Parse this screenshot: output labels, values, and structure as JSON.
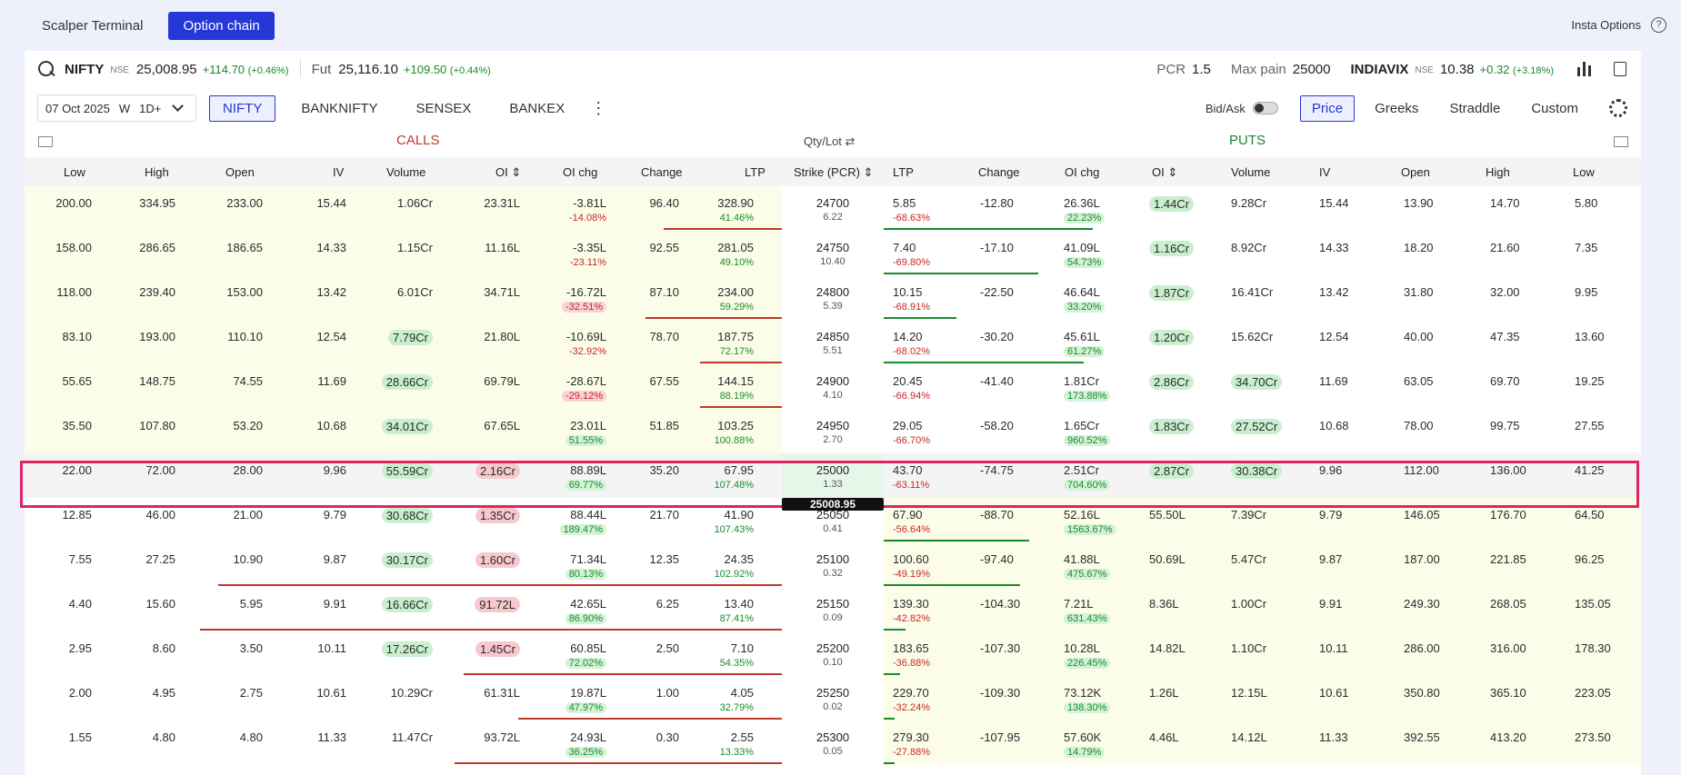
{
  "nav": {
    "tab1": "Scalper Terminal",
    "tab2": "Option chain",
    "insta": "Insta Options",
    "help": "?"
  },
  "index": {
    "name": "NIFTY",
    "exch": "NSE",
    "price": "25,008.95",
    "chg": "+114.70",
    "chg_pct": "(+0.46%)",
    "fut_label": "Fut",
    "fut_price": "25,116.10",
    "fut_chg": "+109.50",
    "fut_pct": "(+0.44%)"
  },
  "stats": {
    "pcr_label": "PCR",
    "pcr": "1.5",
    "maxpain_label": "Max pain",
    "maxpain": "25000",
    "vix_name": "INDIAVIX",
    "vix_exch": "NSE",
    "vix": "10.38",
    "vix_chg": "+0.32",
    "vix_pct": "(+3.18%)"
  },
  "controls": {
    "date": "07 Oct 2025",
    "w": "W",
    "span": "1D+",
    "tabs": [
      "NIFTY",
      "BANKNIFTY",
      "SENSEX",
      "BANKEX"
    ],
    "bidask": "Bid/Ask",
    "views": [
      "Price",
      "Greeks",
      "Straddle",
      "Custom"
    ]
  },
  "labels": {
    "calls": "CALLS",
    "qty": "Qty/Lot ⇄",
    "puts": "PUTS"
  },
  "headers": {
    "low": "Low",
    "high": "High",
    "open": "Open",
    "iv": "IV",
    "volume": "Volume",
    "oi": "OI ⇕",
    "oichg": "OI chg",
    "change": "Change",
    "ltp": "LTP",
    "strike": "Strike (PCR) ⇕",
    "p_ltp": "LTP",
    "p_change": "Change",
    "p_oichg": "OI chg",
    "p_oi": "OI ⇕",
    "p_volume": "Volume",
    "p_iv": "IV",
    "p_open": "Open",
    "p_high": "High",
    "p_low": "Low"
  },
  "spot_marker": "25008.95",
  "rows": [
    {
      "c": [
        "200.00",
        "334.95",
        "233.00",
        "15.44",
        "1.06Cr",
        "23.31L",
        "-3.81L",
        "-14.08%",
        "96.40",
        "328.90",
        "41.46%"
      ],
      "s": "24700",
      "pcr": "6.22",
      "p": [
        "5.85",
        "-68.63%",
        "-12.80",
        "26.36L",
        "22.23%",
        "1.44Cr",
        "9.28Cr",
        "15.44",
        "13.90",
        "14.70",
        "5.80"
      ]
    },
    {
      "c": [
        "158.00",
        "286.65",
        "186.65",
        "14.33",
        "1.15Cr",
        "11.16L",
        "-3.35L",
        "-23.11%",
        "92.55",
        "281.05",
        "49.10%"
      ],
      "s": "24750",
      "pcr": "10.40",
      "p": [
        "7.40",
        "-69.80%",
        "-17.10",
        "41.09L",
        "54.73%",
        "1.16Cr",
        "8.92Cr",
        "14.33",
        "18.20",
        "21.60",
        "7.35"
      ]
    },
    {
      "c": [
        "118.00",
        "239.40",
        "153.00",
        "13.42",
        "6.01Cr",
        "34.71L",
        "-16.72L",
        "-32.51%",
        "87.10",
        "234.00",
        "59.29%"
      ],
      "s": "24800",
      "pcr": "5.39",
      "p": [
        "10.15",
        "-68.91%",
        "-22.50",
        "46.64L",
        "33.20%",
        "1.87Cr",
        "16.41Cr",
        "13.42",
        "31.80",
        "32.00",
        "9.95"
      ]
    },
    {
      "c": [
        "83.10",
        "193.00",
        "110.10",
        "12.54",
        "7.79Cr",
        "21.80L",
        "-10.69L",
        "-32.92%",
        "78.70",
        "187.75",
        "72.17%"
      ],
      "s": "24850",
      "pcr": "5.51",
      "p": [
        "14.20",
        "-68.02%",
        "-30.20",
        "45.61L",
        "61.27%",
        "1.20Cr",
        "15.62Cr",
        "12.54",
        "40.00",
        "47.35",
        "13.60"
      ]
    },
    {
      "c": [
        "55.65",
        "148.75",
        "74.55",
        "11.69",
        "28.66Cr",
        "69.79L",
        "-28.67L",
        "-29.12%",
        "67.55",
        "144.15",
        "88.19%"
      ],
      "s": "24900",
      "pcr": "4.10",
      "p": [
        "20.45",
        "-66.94%",
        "-41.40",
        "1.81Cr",
        "173.88%",
        "2.86Cr",
        "34.70Cr",
        "11.69",
        "63.05",
        "69.70",
        "19.25"
      ]
    },
    {
      "c": [
        "35.50",
        "107.80",
        "53.20",
        "10.68",
        "34.01Cr",
        "67.65L",
        "23.01L",
        "51.55%",
        "51.85",
        "103.25",
        "100.88%"
      ],
      "s": "24950",
      "pcr": "2.70",
      "p": [
        "29.05",
        "-66.70%",
        "-58.20",
        "1.65Cr",
        "960.52%",
        "1.83Cr",
        "27.52Cr",
        "10.68",
        "78.00",
        "99.75",
        "27.55"
      ]
    },
    {
      "c": [
        "22.00",
        "72.00",
        "28.00",
        "9.96",
        "55.59Cr",
        "2.16Cr",
        "88.89L",
        "69.77%",
        "35.20",
        "67.95",
        "107.48%"
      ],
      "s": "25000",
      "pcr": "1.33",
      "p": [
        "43.70",
        "-63.11%",
        "-74.75",
        "2.51Cr",
        "704.60%",
        "2.87Cr",
        "30.38Cr",
        "9.96",
        "112.00",
        "136.00",
        "41.25"
      ]
    },
    {
      "c": [
        "12.85",
        "46.00",
        "21.00",
        "9.79",
        "30.68Cr",
        "1.35Cr",
        "88.44L",
        "189.47%",
        "21.70",
        "41.90",
        "107.43%"
      ],
      "s": "25050",
      "pcr": "0.41",
      "p": [
        "67.90",
        "-56.64%",
        "-88.70",
        "52.16L",
        "1563.67%",
        "55.50L",
        "7.39Cr",
        "9.79",
        "146.05",
        "176.70",
        "64.50"
      ]
    },
    {
      "c": [
        "7.55",
        "27.25",
        "10.90",
        "9.87",
        "30.17Cr",
        "1.60Cr",
        "71.34L",
        "80.13%",
        "12.35",
        "24.35",
        "102.92%"
      ],
      "s": "25100",
      "pcr": "0.32",
      "p": [
        "100.60",
        "-49.19%",
        "-97.40",
        "41.88L",
        "475.67%",
        "50.69L",
        "5.47Cr",
        "9.87",
        "187.00",
        "221.85",
        "96.25"
      ]
    },
    {
      "c": [
        "4.40",
        "15.60",
        "5.95",
        "9.91",
        "16.66Cr",
        "91.72L",
        "42.65L",
        "86.90%",
        "6.25",
        "13.40",
        "87.41%"
      ],
      "s": "25150",
      "pcr": "0.09",
      "p": [
        "139.30",
        "-42.82%",
        "-104.30",
        "7.21L",
        "631.43%",
        "8.36L",
        "1.00Cr",
        "9.91",
        "249.30",
        "268.05",
        "135.05"
      ]
    },
    {
      "c": [
        "2.95",
        "8.60",
        "3.50",
        "10.11",
        "17.26Cr",
        "1.45Cr",
        "60.85L",
        "72.02%",
        "2.50",
        "7.10",
        "54.35%"
      ],
      "s": "25200",
      "pcr": "0.10",
      "p": [
        "183.65",
        "-36.88%",
        "-107.30",
        "10.28L",
        "226.45%",
        "14.82L",
        "1.10Cr",
        "10.11",
        "286.00",
        "316.00",
        "178.30"
      ]
    },
    {
      "c": [
        "2.00",
        "4.95",
        "2.75",
        "10.61",
        "10.29Cr",
        "61.31L",
        "19.87L",
        "47.97%",
        "1.00",
        "4.05",
        "32.79%"
      ],
      "s": "25250",
      "pcr": "0.02",
      "p": [
        "229.70",
        "-32.24%",
        "-109.30",
        "73.12K",
        "138.30%",
        "1.26L",
        "12.15L",
        "10.61",
        "350.80",
        "365.10",
        "223.05"
      ]
    },
    {
      "c": [
        "1.55",
        "4.80",
        "4.80",
        "11.33",
        "11.47Cr",
        "93.72L",
        "24.93L",
        "36.25%",
        "0.30",
        "2.55",
        "13.33%"
      ],
      "s": "25300",
      "pcr": "0.05",
      "p": [
        "279.30",
        "-27.88%",
        "-107.95",
        "57.60K",
        "14.79%",
        "4.46L",
        "14.12L",
        "11.33",
        "392.55",
        "413.20",
        "273.50"
      ]
    }
  ]
}
